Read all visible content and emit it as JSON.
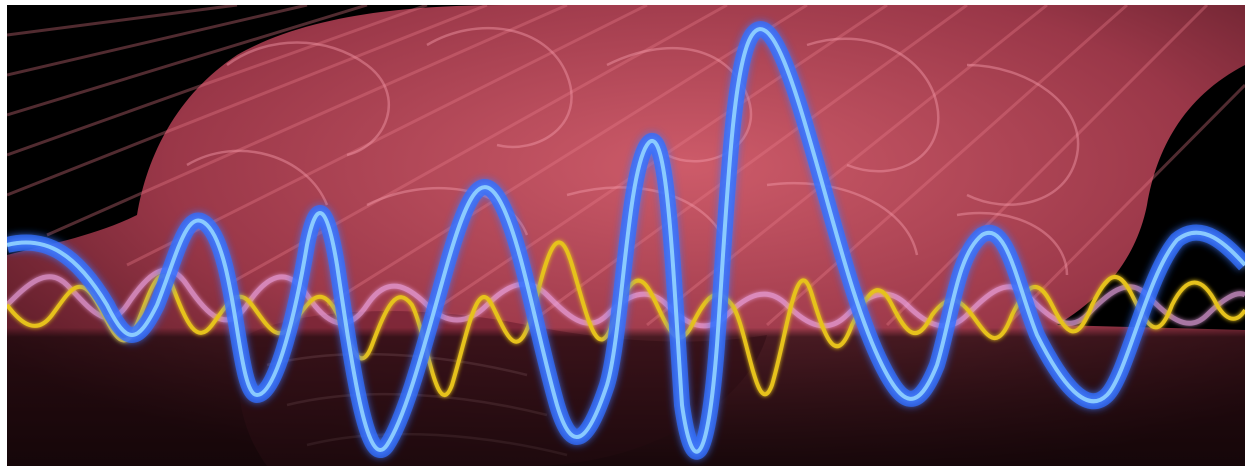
{
  "image": {
    "subject": "brain-waves",
    "colors": {
      "background": "#000000",
      "brain": "#c04a5c",
      "brain_highlight": "#f07a8c",
      "blue_wave": "#3a7bff",
      "blue_wave_glow": "#8fd0ff",
      "yellow_wave": "#e6c21a",
      "pink_wave": "#f0a8e8",
      "page_border": "#ffffff"
    }
  }
}
